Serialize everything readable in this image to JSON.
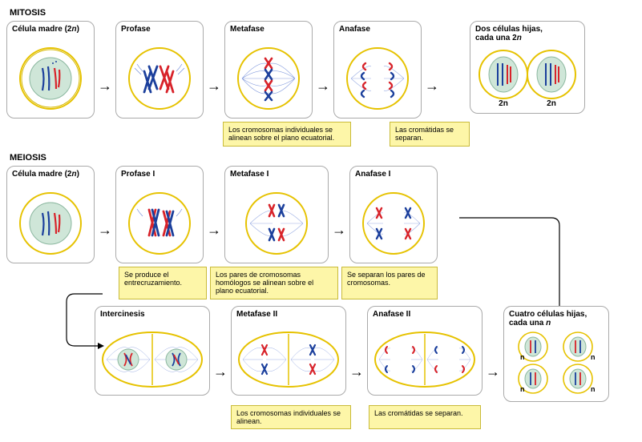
{
  "colors": {
    "chrom_red": "#d8232a",
    "chrom_blue": "#1b3f9c",
    "cell_outline": "#e6c200",
    "cell_outline2": "#d6b800",
    "nucleus_fill": "#cfe6d8",
    "spindle": "#3a5fc8",
    "note_bg": "#fdf6a8",
    "note_border": "#c9bb3a",
    "arrow": "#000000"
  },
  "mitosis": {
    "section": "MITOSIS",
    "mother": {
      "title": "Célula madre (2n)",
      "title_html": "Célula madre (2<i>n</i>)"
    },
    "profase": {
      "title": "Profase"
    },
    "metafase": {
      "title": "Metafase",
      "note": "Los cromosomas individuales se alinean sobre el plano ecuatorial."
    },
    "anafase": {
      "title": "Anafase",
      "note": "Las cromátidas se separan."
    },
    "daughters": {
      "title_html": "Dos células hijas,<br>cada una 2<i>n</i>",
      "label": "2n"
    }
  },
  "meiosis": {
    "section": "MEIOSIS",
    "mother": {
      "title_html": "Célula madre (2<i>n</i>)"
    },
    "profase1": {
      "title": "Profase I",
      "note": "Se produce el entrecruzamiento."
    },
    "metafase1": {
      "title": "Metafase I",
      "note": "Los pares de cromosomas homólogos se alinean sobre el plano ecuatorial."
    },
    "anafase1": {
      "title": "Anafase I",
      "note": "Se separan los pares de cromosomas."
    },
    "intercinesis": {
      "title": "Intercinesis"
    },
    "metafase2": {
      "title": "Metafase II",
      "note": "Los cromosomas individuales se alinean."
    },
    "anafase2": {
      "title": "Anafase II",
      "note": "Las cromátidas se separan."
    },
    "daughters": {
      "title_html": "Cuatro células hijas,<br>cada una <i>n</i>",
      "label": "n"
    }
  },
  "diagram_style": {
    "cell_radius": 38,
    "outline_width": 2,
    "chrom_width": 2.5,
    "spindle_width": 0.8
  }
}
